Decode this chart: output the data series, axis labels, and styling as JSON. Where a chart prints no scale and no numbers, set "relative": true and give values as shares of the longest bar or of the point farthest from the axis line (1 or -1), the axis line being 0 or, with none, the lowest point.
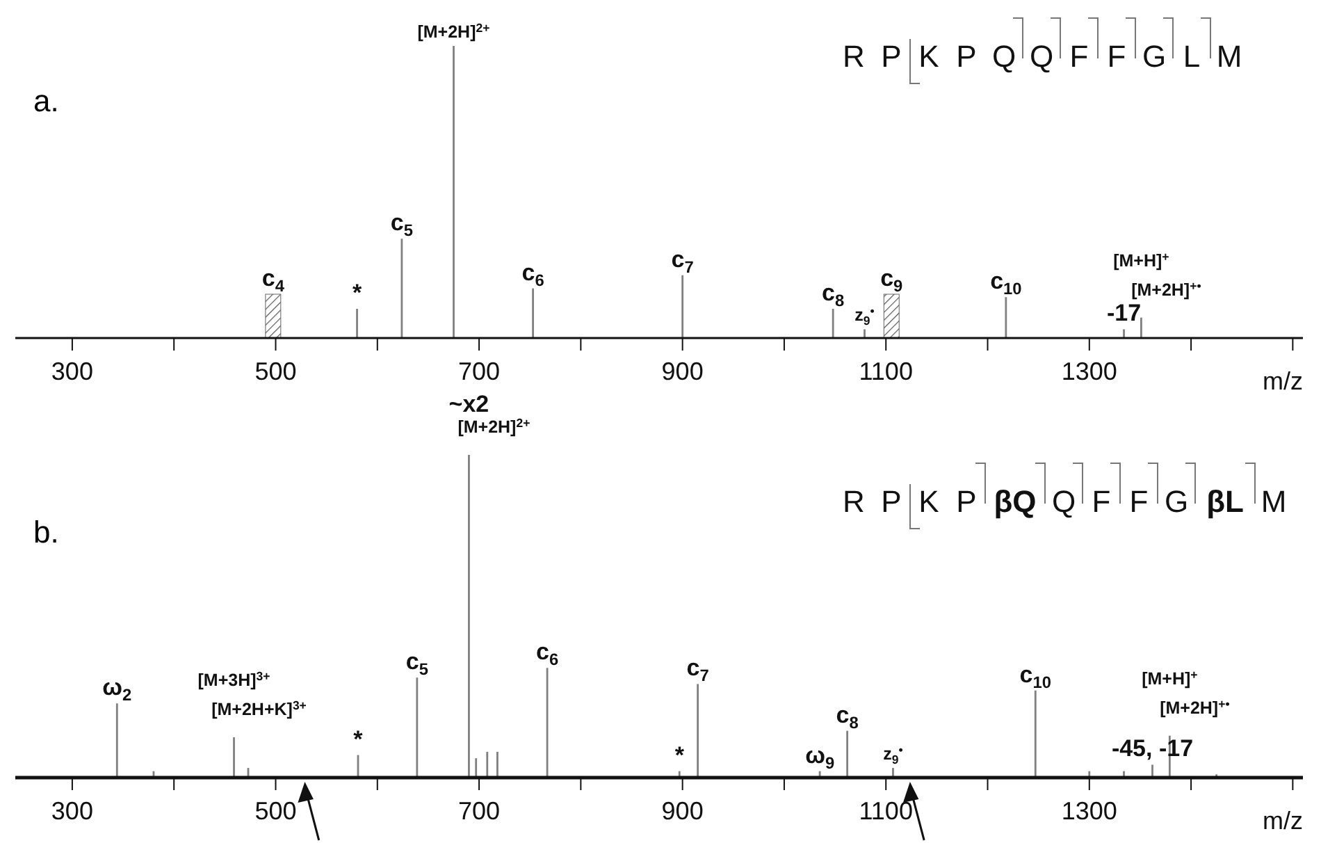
{
  "chart_data": [
    {
      "type": "bar",
      "title": "a.",
      "xlabel": "m/z",
      "relative": true,
      "xlim": [
        244,
        1510
      ],
      "xticks": [
        300,
        {
          "value": 400,
          "label": null
        },
        500,
        {
          "value": 600,
          "label": null
        },
        700,
        {
          "value": 800,
          "label": null
        },
        900,
        {
          "value": 1000,
          "label": null
        },
        1100,
        {
          "value": 1200,
          "label": null
        },
        1300,
        {
          "value": 1400,
          "label": null
        },
        {
          "value": 1500,
          "label": null
        }
      ],
      "tick_labels": "x",
      "series": [
        {
          "color": "#808080",
          "x": [
            580,
            624,
            675,
            753,
            900,
            1048,
            1079,
            1218,
            1334,
            1351
          ],
          "values": [
            0.1,
            0.34,
            1.0,
            0.17,
            0.215,
            0.1,
            0.03,
            0.14,
            0.03,
            0.07
          ]
        }
      ],
      "bands": [
        {
          "axis": "x",
          "from": 490,
          "to": 505,
          "label": "c$_{4}$"
        },
        {
          "axis": "x",
          "from": 1098,
          "to": 1113,
          "label": "c$_{9}$"
        }
      ],
      "annotations": [
        "R P K P Q Q F F G L M",
        {
          "text": "*",
          "x": 580,
          "y": 0.1
        },
        {
          "text": "c$_{5}$",
          "x": 624,
          "y": 0.34
        },
        {
          "text": "[M+2H]$^{2+}$",
          "x": 675,
          "y": 1.0
        },
        {
          "text": "c$_{6}$",
          "x": 753,
          "y": 0.17
        },
        {
          "text": "c$_{7}$",
          "x": 900,
          "y": 0.215
        },
        {
          "text": "c$_{8}$",
          "x": 1048,
          "y": 0.1
        },
        {
          "text": "z$_{9}$$^{•}$",
          "x": 1079,
          "y": 0.03
        },
        {
          "text": "c$_{10}$",
          "x": 1218,
          "y": 0.14
        },
        {
          "text": "-17",
          "x": 1334,
          "y": 0.03
        },
        {
          "text": "[M+H]$^{+}$",
          "x": 1351,
          "y": 0.07
        },
        {
          "text": "[M+2H]$^{+•}$",
          "x": 1351,
          "y": 0.07
        }
      ]
    },
    {
      "type": "bar",
      "title": "b.",
      "xlabel": "m/z",
      "relative": true,
      "xlim": [
        244,
        1510
      ],
      "xticks": [
        300,
        {
          "value": 400,
          "label": null
        },
        500,
        {
          "value": 600,
          "label": null
        },
        700,
        {
          "value": 800,
          "label": null
        },
        900,
        {
          "value": 1000,
          "label": null
        },
        1100,
        {
          "value": 1200,
          "label": null
        },
        1300,
        {
          "value": 1400,
          "label": null
        },
        {
          "value": 1500,
          "label": null
        }
      ],
      "tick_labels": "x",
      "series": [
        {
          "color": "#808080",
          "x": [
            344,
            380,
            459,
            473,
            581,
            639,
            690,
            697,
            708,
            718,
            767,
            897,
            915,
            1035,
            1062,
            1107,
            1247,
            1300,
            1334,
            1362,
            1379,
            1425
          ],
          "values": [
            0.23,
            0.02,
            0.125,
            0.03,
            0.07,
            0.31,
            1.0,
            0.06,
            0.08,
            0.08,
            0.34,
            0.02,
            0.29,
            0.02,
            0.145,
            0.03,
            0.27,
            0.02,
            0.02,
            0.04,
            0.13,
            0.01
          ]
        }
      ],
      "annotations": [
        "R P K P βQ Q F F G βL M",
        {
          "text": "~x2",
          "x": 690,
          "y": 1.0
        },
        {
          "text": "[M+2H]$^{2+}$",
          "x": 690,
          "y": 1.0
        },
        {
          "text": "ω$_{2}$",
          "x": 344,
          "y": 0.23
        },
        {
          "text": "[M+3H]$^{3+}$",
          "x": 459,
          "y": 0.125
        },
        {
          "text": "[M+2H+K]$^{3+}$",
          "x": 459,
          "y": 0.125
        },
        {
          "text": "*",
          "x": 581,
          "y": 0.07
        },
        {
          "text": "c$_{5}$",
          "x": 639,
          "y": 0.31
        },
        {
          "text": "c$_{6}$",
          "x": 767,
          "y": 0.34
        },
        {
          "text": "*",
          "x": 897,
          "y": 0.02
        },
        {
          "text": "c$_{7}$",
          "x": 915,
          "y": 0.29
        },
        {
          "text": "ω$_{9}$",
          "x": 1035,
          "y": 0.02
        },
        {
          "text": "c$_{8}$",
          "x": 1062,
          "y": 0.145
        },
        {
          "text": "z$_{9}$$^{•}$",
          "x": 1107,
          "y": 0.03
        },
        {
          "text": "c$_{10}$",
          "x": 1247,
          "y": 0.27
        },
        {
          "text": "-45, -17",
          "x": 1362,
          "y": 0.04
        },
        {
          "text": "[M+H]$^{+}$",
          "x": 1379,
          "y": 0.13
        },
        {
          "text": "[M+2H]$^{+•}$",
          "x": 1379,
          "y": 0.13
        }
      ]
    }
  ]
}
